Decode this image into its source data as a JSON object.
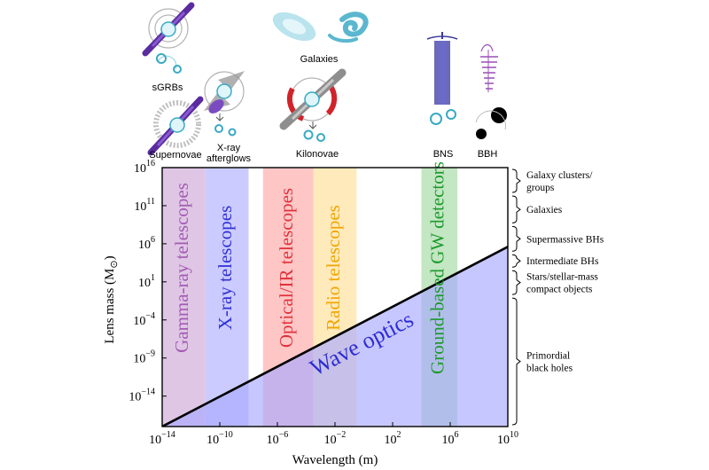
{
  "sources": {
    "sgrbs": "sGRBs",
    "supernovae": "Supernovae",
    "xray_afterglows_line1": "X-ray",
    "xray_afterglows_line2": "afterglows",
    "galaxies": "Galaxies",
    "kilonovae": "Kilonovae",
    "bns": "BNS",
    "bbh": "BBH"
  },
  "chart_data": {
    "type": "area",
    "xlabel": "Wavelength (m)",
    "ylabel": "Lens mass (M",
    "ylabel_sub": "⊙",
    "ylabel_close": ")",
    "x_scale": "log",
    "y_scale": "log",
    "xlim": [
      -14,
      10
    ],
    "ylim": [
      -18,
      16
    ],
    "x_ticks": [
      {
        "exp": -14,
        "base": "10",
        "sup": "−14"
      },
      {
        "exp": -10,
        "base": "10",
        "sup": "−10"
      },
      {
        "exp": -6,
        "base": "10",
        "sup": "−6"
      },
      {
        "exp": -2,
        "base": "10",
        "sup": "−2"
      },
      {
        "exp": 2,
        "base": "10",
        "sup": "2"
      },
      {
        "exp": 6,
        "base": "10",
        "sup": "6"
      },
      {
        "exp": 10,
        "base": "10",
        "sup": "10"
      }
    ],
    "y_ticks": [
      {
        "exp": 16,
        "base": "10",
        "sup": "16"
      },
      {
        "exp": 11,
        "base": "10",
        "sup": "11"
      },
      {
        "exp": 6,
        "base": "10",
        "sup": "6"
      },
      {
        "exp": 1,
        "base": "10",
        "sup": "1"
      },
      {
        "exp": -4,
        "base": "10",
        "sup": "−4"
      },
      {
        "exp": -9,
        "base": "10",
        "sup": "−9"
      },
      {
        "exp": -14,
        "base": "10",
        "sup": "−14"
      }
    ],
    "bands": [
      {
        "label": "Gamma-ray telescopes",
        "x_from": -14,
        "x_to": -11,
        "color": "#a35bb3",
        "fill": "#d9bce0"
      },
      {
        "label": "X-ray telescopes",
        "x_from": -11,
        "x_to": -8,
        "color": "#2f2fd6",
        "fill": "#c2c2ff"
      },
      {
        "label": "Optical/IR telescopes",
        "x_from": -7,
        "x_to": -3.5,
        "color": "#e0313a",
        "fill": "#ffbcbc"
      },
      {
        "label": "Radio telescopes",
        "x_from": -3.5,
        "x_to": -0.5,
        "color": "#f0a500",
        "fill": "#ffe6b0"
      },
      {
        "label": "Ground-based GW detectors",
        "x_from": 4,
        "x_to": 6.5,
        "color": "#1c9a2c",
        "fill": "#b8e2b8"
      }
    ],
    "wave_optics": {
      "label": "Wave optics",
      "line_from": [
        -14,
        -18
      ],
      "line_to": [
        10,
        5.6
      ],
      "color": "#2c2cd6",
      "fill": "#a9a9ff"
    },
    "right_annotations": [
      {
        "lines": [
          "Galaxy clusters/",
          "groups"
        ],
        "y_from": 16,
        "y_to": 12.5
      },
      {
        "lines": [
          "Galaxies"
        ],
        "y_from": 12.5,
        "y_to": 8.5
      },
      {
        "lines": [
          "Supermassive BHs"
        ],
        "y_from": 8.5,
        "y_to": 4.8
      },
      {
        "lines": [
          "Intermediate BHs"
        ],
        "y_from": 4.8,
        "y_to": 2.7
      },
      {
        "lines": [
          "Stars/stellar-mass",
          "compact objects"
        ],
        "y_from": 2.7,
        "y_to": -0.9
      },
      {
        "lines": [
          "Primordial",
          "black holes"
        ],
        "y_from": -0.9,
        "y_to": -18
      }
    ]
  }
}
